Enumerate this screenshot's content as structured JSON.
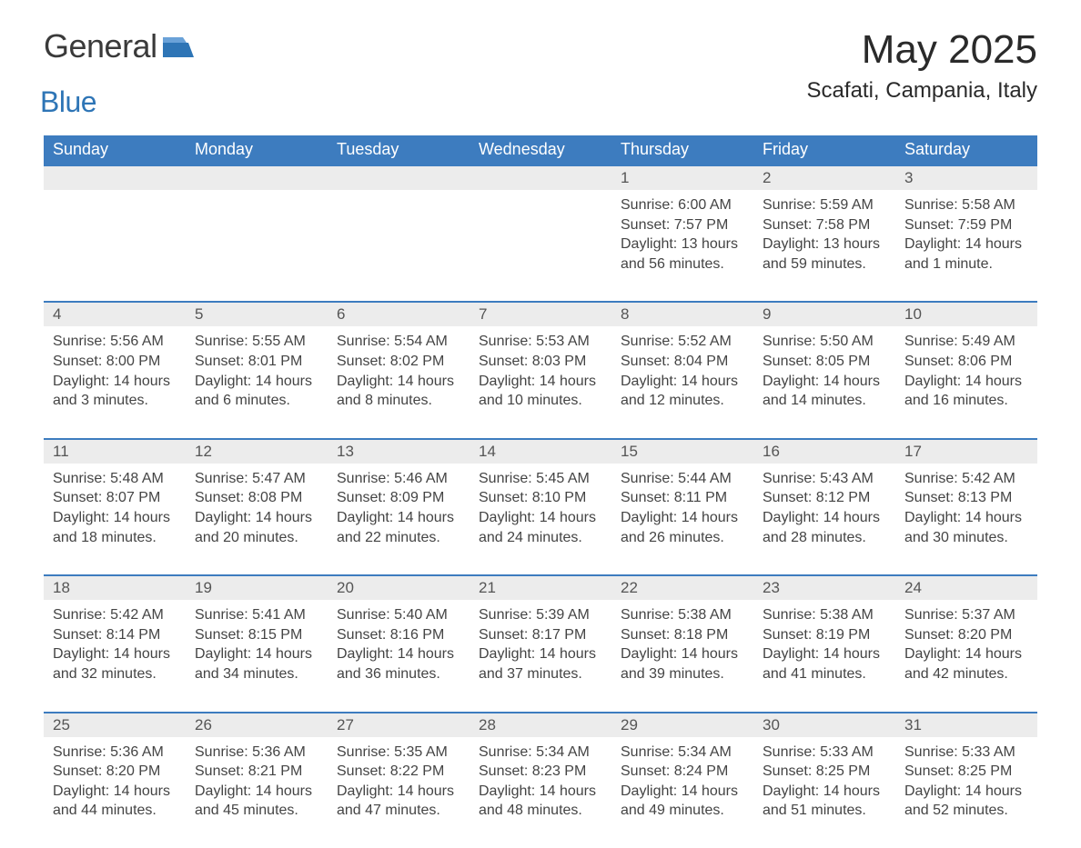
{
  "logo": {
    "word1": "General",
    "word2": "Blue"
  },
  "title": "May 2025",
  "location": "Scafati, Campania, Italy",
  "colors": {
    "header_bg": "#3d7cbf",
    "header_text": "#ffffff",
    "daynum_bg": "#ececec",
    "daynum_text": "#555555",
    "body_text": "#444444",
    "accent": "#2e75b6",
    "logo_dark": "#3a3a3a",
    "border": "#3d7cbf",
    "background": "#ffffff"
  },
  "typography": {
    "title_fontsize": 44,
    "location_fontsize": 24,
    "dow_fontsize": 18,
    "daynum_fontsize": 17,
    "body_fontsize": 16,
    "font_family": "Segoe UI"
  },
  "days_of_week": [
    "Sunday",
    "Monday",
    "Tuesday",
    "Wednesday",
    "Thursday",
    "Friday",
    "Saturday"
  ],
  "labels": {
    "sunrise": "Sunrise",
    "sunset": "Sunset",
    "daylight": "Daylight"
  },
  "weeks": [
    [
      null,
      null,
      null,
      null,
      {
        "n": "1",
        "sunrise": "6:00 AM",
        "sunset": "7:57 PM",
        "daylight": "13 hours and 56 minutes."
      },
      {
        "n": "2",
        "sunrise": "5:59 AM",
        "sunset": "7:58 PM",
        "daylight": "13 hours and 59 minutes."
      },
      {
        "n": "3",
        "sunrise": "5:58 AM",
        "sunset": "7:59 PM",
        "daylight": "14 hours and 1 minute."
      }
    ],
    [
      {
        "n": "4",
        "sunrise": "5:56 AM",
        "sunset": "8:00 PM",
        "daylight": "14 hours and 3 minutes."
      },
      {
        "n": "5",
        "sunrise": "5:55 AM",
        "sunset": "8:01 PM",
        "daylight": "14 hours and 6 minutes."
      },
      {
        "n": "6",
        "sunrise": "5:54 AM",
        "sunset": "8:02 PM",
        "daylight": "14 hours and 8 minutes."
      },
      {
        "n": "7",
        "sunrise": "5:53 AM",
        "sunset": "8:03 PM",
        "daylight": "14 hours and 10 minutes."
      },
      {
        "n": "8",
        "sunrise": "5:52 AM",
        "sunset": "8:04 PM",
        "daylight": "14 hours and 12 minutes."
      },
      {
        "n": "9",
        "sunrise": "5:50 AM",
        "sunset": "8:05 PM",
        "daylight": "14 hours and 14 minutes."
      },
      {
        "n": "10",
        "sunrise": "5:49 AM",
        "sunset": "8:06 PM",
        "daylight": "14 hours and 16 minutes."
      }
    ],
    [
      {
        "n": "11",
        "sunrise": "5:48 AM",
        "sunset": "8:07 PM",
        "daylight": "14 hours and 18 minutes."
      },
      {
        "n": "12",
        "sunrise": "5:47 AM",
        "sunset": "8:08 PM",
        "daylight": "14 hours and 20 minutes."
      },
      {
        "n": "13",
        "sunrise": "5:46 AM",
        "sunset": "8:09 PM",
        "daylight": "14 hours and 22 minutes."
      },
      {
        "n": "14",
        "sunrise": "5:45 AM",
        "sunset": "8:10 PM",
        "daylight": "14 hours and 24 minutes."
      },
      {
        "n": "15",
        "sunrise": "5:44 AM",
        "sunset": "8:11 PM",
        "daylight": "14 hours and 26 minutes."
      },
      {
        "n": "16",
        "sunrise": "5:43 AM",
        "sunset": "8:12 PM",
        "daylight": "14 hours and 28 minutes."
      },
      {
        "n": "17",
        "sunrise": "5:42 AM",
        "sunset": "8:13 PM",
        "daylight": "14 hours and 30 minutes."
      }
    ],
    [
      {
        "n": "18",
        "sunrise": "5:42 AM",
        "sunset": "8:14 PM",
        "daylight": "14 hours and 32 minutes."
      },
      {
        "n": "19",
        "sunrise": "5:41 AM",
        "sunset": "8:15 PM",
        "daylight": "14 hours and 34 minutes."
      },
      {
        "n": "20",
        "sunrise": "5:40 AM",
        "sunset": "8:16 PM",
        "daylight": "14 hours and 36 minutes."
      },
      {
        "n": "21",
        "sunrise": "5:39 AM",
        "sunset": "8:17 PM",
        "daylight": "14 hours and 37 minutes."
      },
      {
        "n": "22",
        "sunrise": "5:38 AM",
        "sunset": "8:18 PM",
        "daylight": "14 hours and 39 minutes."
      },
      {
        "n": "23",
        "sunrise": "5:38 AM",
        "sunset": "8:19 PM",
        "daylight": "14 hours and 41 minutes."
      },
      {
        "n": "24",
        "sunrise": "5:37 AM",
        "sunset": "8:20 PM",
        "daylight": "14 hours and 42 minutes."
      }
    ],
    [
      {
        "n": "25",
        "sunrise": "5:36 AM",
        "sunset": "8:20 PM",
        "daylight": "14 hours and 44 minutes."
      },
      {
        "n": "26",
        "sunrise": "5:36 AM",
        "sunset": "8:21 PM",
        "daylight": "14 hours and 45 minutes."
      },
      {
        "n": "27",
        "sunrise": "5:35 AM",
        "sunset": "8:22 PM",
        "daylight": "14 hours and 47 minutes."
      },
      {
        "n": "28",
        "sunrise": "5:34 AM",
        "sunset": "8:23 PM",
        "daylight": "14 hours and 48 minutes."
      },
      {
        "n": "29",
        "sunrise": "5:34 AM",
        "sunset": "8:24 PM",
        "daylight": "14 hours and 49 minutes."
      },
      {
        "n": "30",
        "sunrise": "5:33 AM",
        "sunset": "8:25 PM",
        "daylight": "14 hours and 51 minutes."
      },
      {
        "n": "31",
        "sunrise": "5:33 AM",
        "sunset": "8:25 PM",
        "daylight": "14 hours and 52 minutes."
      }
    ]
  ]
}
